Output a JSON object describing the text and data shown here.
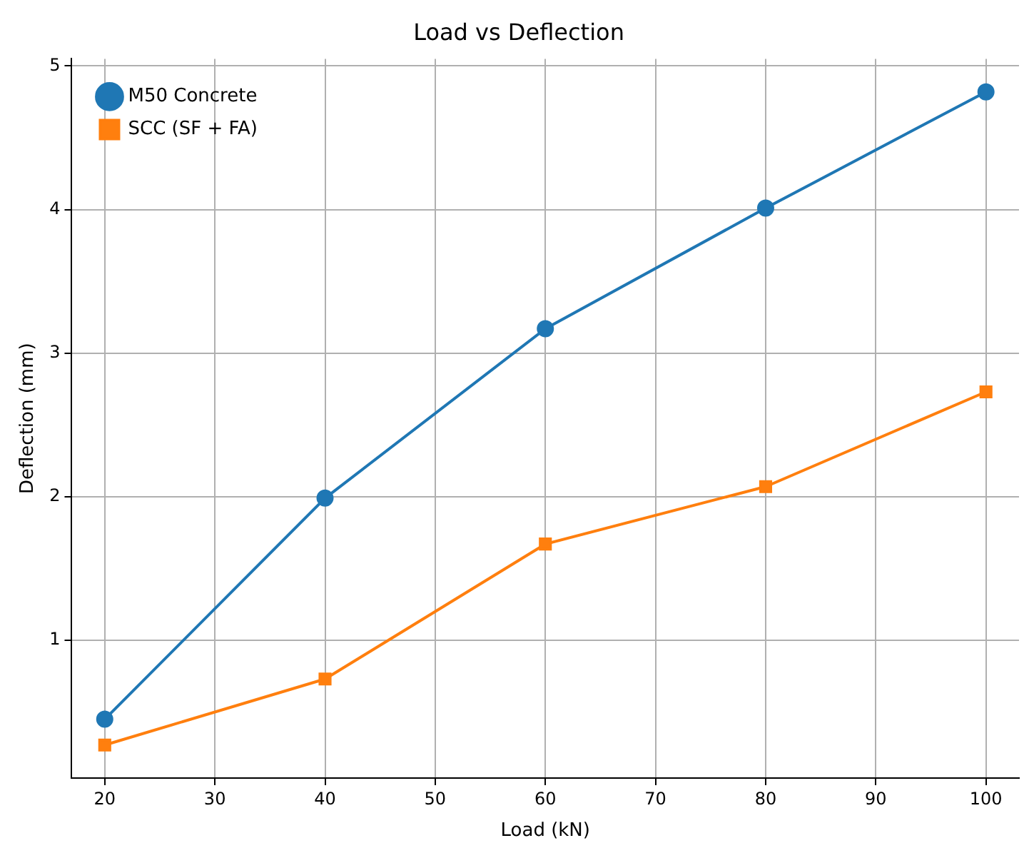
{
  "chart_data": {
    "type": "line",
    "title": "Load vs Deflection",
    "xlabel": "Load (kN)",
    "ylabel": "Deflection (mm)",
    "x": [
      20,
      40,
      60,
      80,
      100
    ],
    "series": [
      {
        "name": "M50 Concrete",
        "color": "#1f77b4",
        "marker": "circle",
        "values": [
          0.45,
          1.99,
          3.17,
          4.01,
          4.82
        ]
      },
      {
        "name": "SCC (SF + FA)",
        "color": "#ff7f0e",
        "marker": "square",
        "values": [
          0.27,
          0.73,
          1.67,
          2.07,
          2.73
        ]
      }
    ],
    "xlim": [
      17,
      103
    ],
    "xticks": [
      20,
      30,
      40,
      50,
      60,
      70,
      80,
      90,
      100
    ],
    "ylim": [
      0.04,
      5.05
    ],
    "yticks": [
      1,
      2,
      3,
      4,
      5
    ],
    "grid": true,
    "legend": "top left",
    "line_style": "solid"
  }
}
